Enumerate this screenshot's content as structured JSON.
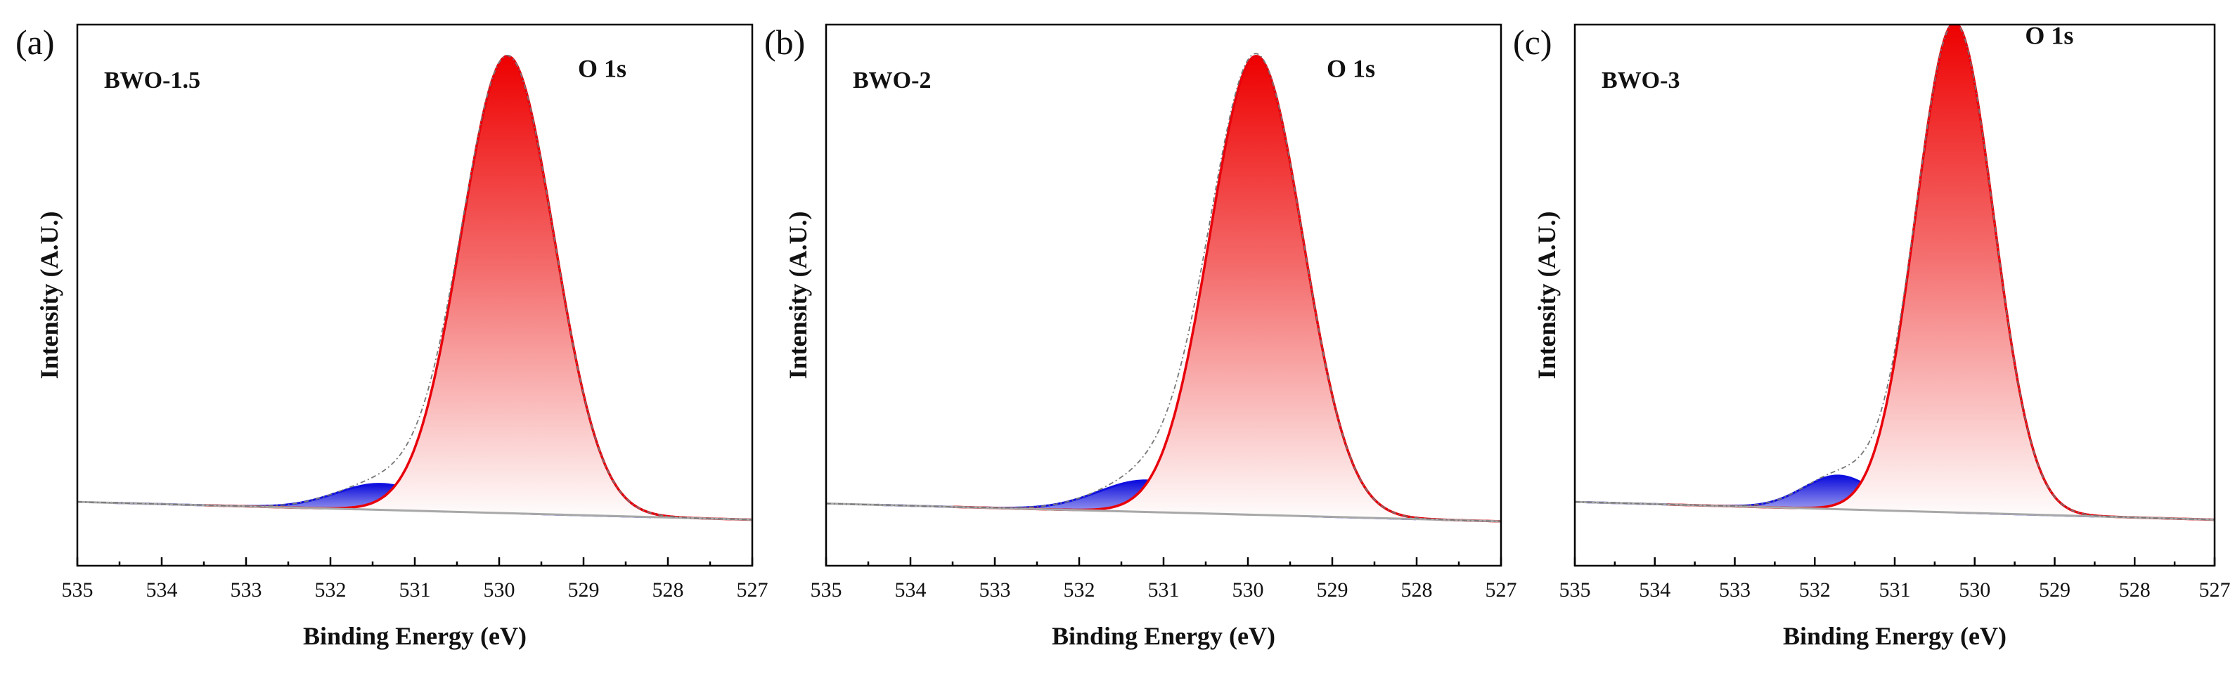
{
  "chart_data": [
    {
      "type": "area",
      "panel": "(a)",
      "title": "BWO-1.5",
      "annotation": "O 1s",
      "xlabel": "Binding Energy (eV)",
      "ylabel": "Intensity (A.U.)",
      "xlim": [
        535,
        527
      ],
      "xticks": [
        "535",
        "534",
        "533",
        "532",
        "531",
        "530",
        "529",
        "528",
        "527"
      ],
      "ylim": [
        0,
        1.0
      ],
      "baseline": {
        "x0": 535,
        "y0": 0.118,
        "x1": 527,
        "y1": 0.085
      },
      "series": [
        {
          "name": "O 1s main peak",
          "color": "#e8000b",
          "center": 529.9,
          "height": 0.845,
          "fwhm": 1.3
        },
        {
          "name": "O 1s shoulder",
          "color": "#1010e0",
          "center": 531.4,
          "height": 0.048,
          "fwhm": 1.25
        },
        {
          "name": "Envelope fit",
          "color": "#888888",
          "type": "dash-dot"
        }
      ]
    },
    {
      "type": "area",
      "panel": "(b)",
      "title": "BWO-2",
      "annotation": "O 1s",
      "xlabel": "Binding Energy (eV)",
      "ylabel": "Intensity (A.U.)",
      "xlim": [
        535,
        527
      ],
      "xticks": [
        "535",
        "534",
        "533",
        "532",
        "531",
        "530",
        "529",
        "528",
        "527"
      ],
      "ylim": [
        0,
        1.0
      ],
      "baseline": {
        "x0": 535,
        "y0": 0.115,
        "x1": 527,
        "y1": 0.082
      },
      "series": [
        {
          "name": "O 1s main peak",
          "color": "#e8000b",
          "center": 529.9,
          "height": 0.848,
          "fwhm": 1.3
        },
        {
          "name": "O 1s shoulder",
          "color": "#1010e0",
          "center": 531.2,
          "height": 0.058,
          "fwhm": 1.35
        },
        {
          "name": "Envelope fit",
          "color": "#888888",
          "type": "dash-dot"
        }
      ]
    },
    {
      "type": "area",
      "panel": "(c)",
      "title": "BWO-3",
      "annotation": "O 1s",
      "xlabel": "Binding Energy (eV)",
      "ylabel": "Intensity (A.U.)",
      "xlim": [
        535,
        527
      ],
      "xticks": [
        "535",
        "534",
        "533",
        "532",
        "531",
        "530",
        "529",
        "528",
        "527"
      ],
      "ylim": [
        0,
        1.0
      ],
      "baseline": {
        "x0": 535,
        "y0": 0.118,
        "x1": 527,
        "y1": 0.085
      },
      "series": [
        {
          "name": "O 1s main peak",
          "color": "#e8000b",
          "center": 530.25,
          "height": 0.905,
          "fwhm": 1.15
        },
        {
          "name": "O 1s shoulder",
          "color": "#1010e0",
          "center": 531.7,
          "height": 0.062,
          "fwhm": 1.05
        },
        {
          "name": "Envelope fit",
          "color": "#888888",
          "type": "dash-dot"
        }
      ]
    }
  ]
}
